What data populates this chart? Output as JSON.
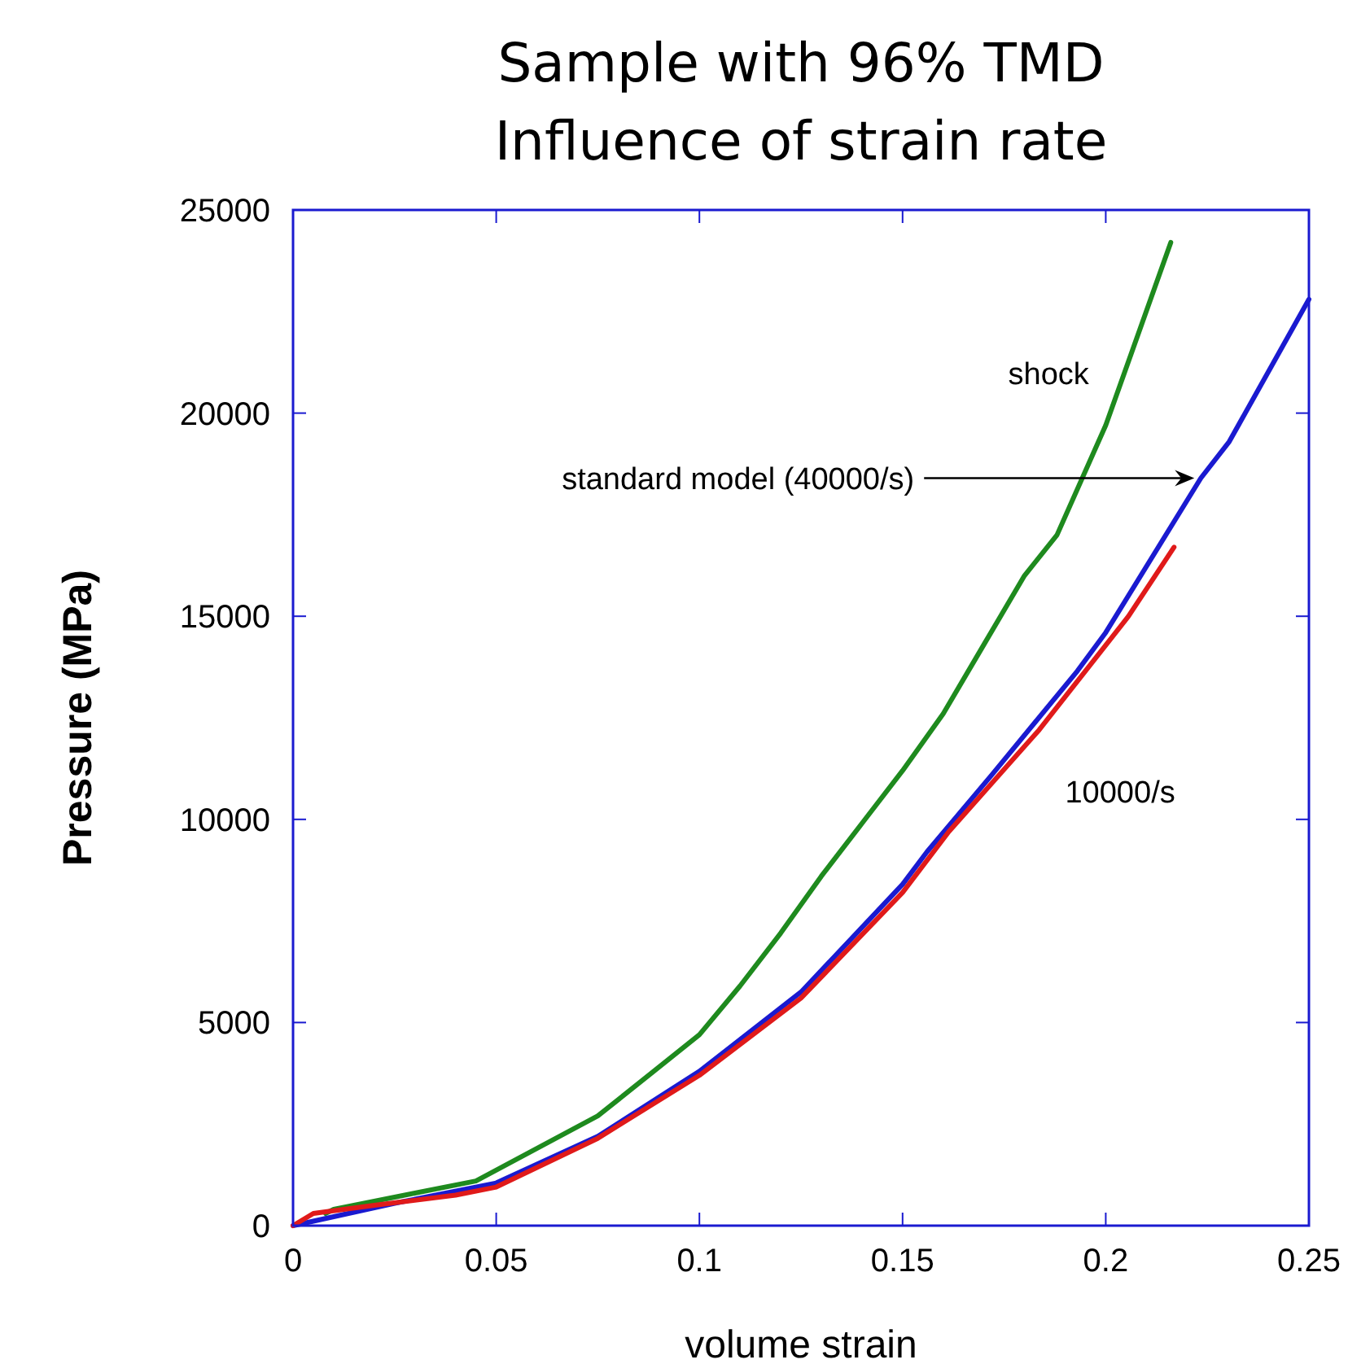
{
  "chart_data": {
    "type": "line",
    "title": "Sample with 96% TMD",
    "subtitle": "Influence of strain rate",
    "xlabel": "volume strain",
    "ylabel": "Pressure (MPa)",
    "xlim": [
      0,
      0.25
    ],
    "xticks": [
      0,
      0.05,
      0.1,
      0.15,
      0.2,
      0.25
    ],
    "ylim": [
      0,
      25000
    ],
    "yticks": [
      0,
      5000,
      10000,
      15000,
      20000,
      25000
    ],
    "grid": false,
    "legend": false,
    "marker": "none",
    "annotations": [
      {
        "text": "standard model (40000/s)",
        "x": 0.2234,
        "y": 18400
      }
    ],
    "line_style": "solid",
    "series": [
      {
        "name": "shock",
        "color": "#1e8a1e",
        "x": [
          0.008,
          0.01,
          0.02,
          0.03,
          0.045,
          0.06,
          0.075,
          0.09,
          0.1,
          0.11,
          0.12,
          0.13,
          0.14,
          0.15,
          0.16,
          0.17,
          0.18,
          0.188,
          0.2,
          0.216
        ],
        "values": [
          300,
          400,
          600,
          800,
          1100,
          1900,
          2700,
          3900,
          4700,
          5900,
          7200,
          8600,
          9900,
          11200,
          12600,
          14300,
          16000,
          17000,
          19700,
          24200
        ]
      },
      {
        "color": "#1a1ad0",
        "x": [
          0,
          0.025,
          0.05,
          0.075,
          0.1,
          0.125,
          0.15,
          0.156,
          0.172,
          0.193,
          0.2,
          0.2234,
          0.2304,
          0.25
        ],
        "values": [
          0,
          550,
          1050,
          2200,
          3800,
          5750,
          8400,
          9200,
          11100,
          13650,
          14600,
          18400,
          19300,
          22800
        ]
      },
      {
        "name": "10000/s",
        "color": "#e01a1a",
        "x": [
          0,
          0.005,
          0.02,
          0.04,
          0.05,
          0.075,
          0.1,
          0.125,
          0.15,
          0.1614,
          0.1836,
          0.2056,
          0.2168
        ],
        "values": [
          0,
          300,
          500,
          750,
          950,
          2150,
          3700,
          5600,
          8200,
          9700,
          12200,
          15000,
          16700
        ]
      }
    ]
  }
}
